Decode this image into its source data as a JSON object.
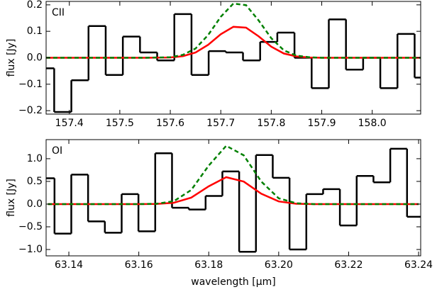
{
  "chart_data": [
    {
      "type": "line",
      "annotation": "CII",
      "ylabel": "flux [Jy]",
      "xlim": [
        157.354,
        158.096
      ],
      "ylim": [
        -0.213,
        0.213
      ],
      "xticks": [
        157.4,
        157.5,
        157.6,
        157.7,
        157.8,
        157.9,
        {
          "value": 158.0,
          "label": "158.0"
        }
      ],
      "yticks": [
        {
          "value": -0.2,
          "label": "−0.2"
        },
        {
          "value": -0.1,
          "label": "−0.1"
        },
        {
          "value": 0.0,
          "label": "0.0"
        },
        0.1,
        0.2
      ],
      "series": [
        {
          "drawstyle": "steps",
          "color": "#000000",
          "linestyle": "solid",
          "bins": [
            157.336,
            157.37,
            157.404,
            157.438,
            157.472,
            157.506,
            157.54,
            157.574,
            157.608,
            157.642,
            157.676,
            157.71,
            157.744,
            157.778,
            157.812,
            157.846,
            157.88,
            157.914,
            157.948,
            157.982,
            158.016,
            158.05,
            158.084,
            158.118
          ],
          "values": [
            -0.04,
            -0.205,
            -0.085,
            0.12,
            -0.065,
            0.08,
            0.02,
            -0.01,
            0.165,
            -0.065,
            0.025,
            0.02,
            -0.01,
            0.06,
            0.095,
            0.0,
            -0.115,
            0.145,
            -0.045,
            0.0,
            -0.115,
            0.09,
            -0.075
          ]
        },
        {
          "color": "#ff0000",
          "linestyle": "solid",
          "x": [
            157.354,
            157.55,
            157.6,
            157.625,
            157.65,
            157.675,
            157.7,
            157.725,
            157.75,
            157.775,
            157.8,
            157.825,
            157.85,
            157.875,
            157.9,
            158.096
          ],
          "values": [
            0,
            0,
            0.001,
            0.006,
            0.02,
            0.049,
            0.089,
            0.117,
            0.114,
            0.081,
            0.042,
            0.016,
            0.005,
            0.001,
            0,
            0
          ]
        },
        {
          "color": "#008000",
          "linestyle": "dashed",
          "x": [
            157.354,
            157.55,
            157.6,
            157.625,
            157.65,
            157.675,
            157.7,
            157.725,
            157.75,
            157.775,
            157.8,
            157.825,
            157.85,
            157.875,
            157.9,
            158.096
          ],
          "values": [
            0,
            0,
            0.002,
            0.011,
            0.035,
            0.086,
            0.155,
            0.205,
            0.199,
            0.141,
            0.074,
            0.028,
            0.008,
            0.002,
            0,
            0
          ]
        }
      ]
    },
    {
      "type": "line",
      "annotation": "OI",
      "ylabel": "flux [Jy]",
      "xlabel": "wavelength [μm]",
      "xlim": [
        63.1335,
        63.2406
      ],
      "ylim": [
        -1.14,
        1.42
      ],
      "xticks": [
        63.14,
        63.16,
        63.18,
        {
          "value": 63.2,
          "label": "63.20"
        },
        63.22,
        63.24
      ],
      "yticks": [
        {
          "value": -1.0,
          "label": "−1.0"
        },
        {
          "value": -0.5,
          "label": "−0.5"
        },
        {
          "value": 0.0,
          "label": "0.0"
        },
        0.5,
        {
          "value": 1.0,
          "label": "1.0"
        }
      ],
      "series": [
        {
          "drawstyle": "steps",
          "color": "#000000",
          "linestyle": "solid",
          "bins": [
            63.1311,
            63.1359,
            63.1407,
            63.1455,
            63.1503,
            63.1551,
            63.1599,
            63.1647,
            63.1695,
            63.1743,
            63.1791,
            63.1839,
            63.1887,
            63.1935,
            63.1983,
            63.2031,
            63.2079,
            63.2127,
            63.2175,
            63.2223,
            63.2271,
            63.2319,
            63.2367,
            63.2415,
            63.2463
          ],
          "values": [
            0.57,
            -0.65,
            0.65,
            -0.38,
            -0.63,
            0.22,
            -0.6,
            1.12,
            -0.08,
            -0.12,
            0.18,
            0.72,
            -1.05,
            1.08,
            0.58,
            -1.0,
            0.22,
            0.33,
            -0.47,
            0.62,
            0.48,
            1.22,
            -0.28,
            -0.13
          ]
        },
        {
          "color": "#ff0000",
          "linestyle": "solid",
          "x": [
            63.134,
            63.16,
            63.165,
            63.17,
            63.175,
            63.18,
            63.185,
            63.19,
            63.195,
            63.2,
            63.205,
            63.21,
            63.24
          ],
          "values": [
            0,
            0,
            0.003,
            0.029,
            0.143,
            0.392,
            0.593,
            0.496,
            0.23,
            0.059,
            0.008,
            0,
            0
          ]
        },
        {
          "color": "#008000",
          "linestyle": "dashed",
          "x": [
            63.134,
            63.16,
            63.165,
            63.17,
            63.175,
            63.18,
            63.185,
            63.19,
            63.195,
            63.2,
            63.205,
            63.21,
            63.24
          ],
          "values": [
            0,
            0,
            0.007,
            0.063,
            0.311,
            0.849,
            1.284,
            1.075,
            0.498,
            0.128,
            0.018,
            0,
            0
          ]
        }
      ]
    }
  ]
}
